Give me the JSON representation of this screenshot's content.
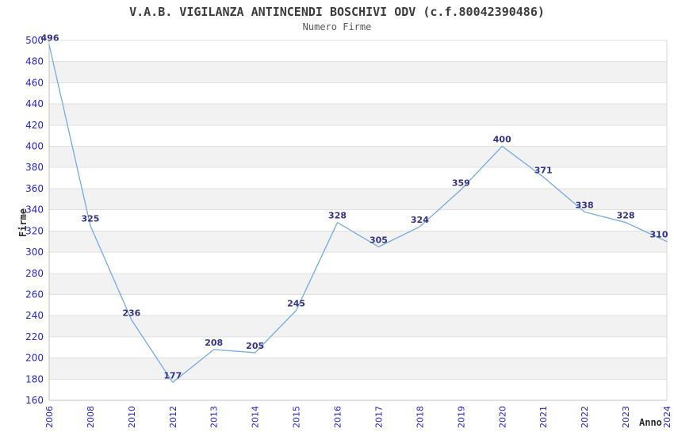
{
  "chart_data": {
    "type": "line",
    "title": "V.A.B. VIGILANZA ANTINCENDI BOSCHIVI ODV (c.f.80042390486)",
    "subtitle": "Numero Firme",
    "xlabel": "Anno",
    "ylabel": "Firme",
    "categories": [
      "2006",
      "2008",
      "2010",
      "2012",
      "2013",
      "2014",
      "2015",
      "2016",
      "2017",
      "2018",
      "2019",
      "2020",
      "2021",
      "2022",
      "2023",
      "2024"
    ],
    "values": [
      496,
      325,
      236,
      177,
      208,
      205,
      245,
      328,
      305,
      324,
      359,
      400,
      371,
      338,
      328,
      310
    ],
    "ylim": [
      160,
      500
    ],
    "y_ticks": [
      160,
      180,
      200,
      220,
      240,
      260,
      280,
      300,
      320,
      340,
      360,
      380,
      400,
      420,
      440,
      460,
      480,
      500
    ],
    "grid": true,
    "alternating_bands": true,
    "legend": "none",
    "colors": {
      "line": "#74aae4",
      "data_label": "#333389",
      "tick_label": "#2525cd",
      "band_fill": "#f2f2f2",
      "grid_line": "#e0e0e0",
      "axis_line": "#c2c2c2",
      "right_border": "#d9d9d9",
      "title": "#3c3c3c",
      "subtitle": "#575757",
      "axis_title": "#2a2a2a",
      "background": "#ffffff"
    }
  }
}
